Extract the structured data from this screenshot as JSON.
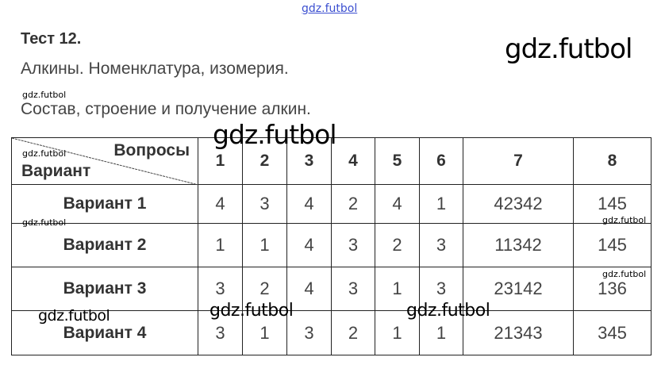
{
  "header": {
    "title": "Тест 12.",
    "subtitle1": "Алкины. Номенклатура, изомерия.",
    "subtitle2": "Состав, строение и получение алкин."
  },
  "watermark": "gdz.futbol",
  "table": {
    "corner_top": "Вопросы",
    "corner_bottom": "Вариант",
    "columns": [
      "1",
      "2",
      "3",
      "4",
      "5",
      "6",
      "7",
      "8"
    ],
    "rows": [
      {
        "label": "Вариант  1",
        "values": [
          "4",
          "3",
          "4",
          "2",
          "4",
          "1",
          "42342",
          "145"
        ]
      },
      {
        "label": "Вариант  2",
        "values": [
          "1",
          "1",
          "4",
          "3",
          "2",
          "3",
          "11342",
          "145"
        ]
      },
      {
        "label": "Вариант  3",
        "values": [
          "3",
          "2",
          "4",
          "3",
          "1",
          "3",
          "23142",
          "136"
        ]
      },
      {
        "label": "Вариант  4",
        "values": [
          "3",
          "1",
          "3",
          "2",
          "1",
          "1",
          "21343",
          "345"
        ]
      }
    ]
  }
}
